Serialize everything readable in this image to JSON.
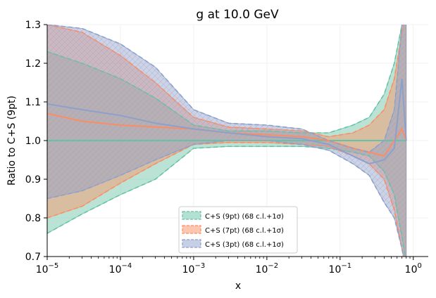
{
  "chart_data": {
    "type": "line",
    "title": "g at 10.0 GeV",
    "xlabel": "x",
    "ylabel": "Ratio to C+S (9pt)",
    "x_scale": "log",
    "xlim": [
      1e-05,
      1.6
    ],
    "ylim": [
      0.7,
      1.3
    ],
    "grid": true,
    "legend_position": "lower-center",
    "x_ticks": [
      {
        "value": 1e-05,
        "base": "10",
        "exp": "−5"
      },
      {
        "value": 0.0001,
        "base": "10",
        "exp": "−4"
      },
      {
        "value": 0.001,
        "base": "10",
        "exp": "−3"
      },
      {
        "value": 0.01,
        "base": "10",
        "exp": "−2"
      },
      {
        "value": 0.1,
        "base": "10",
        "exp": "−1"
      },
      {
        "value": 1,
        "base": "10",
        "exp": "0"
      }
    ],
    "y_ticks": [
      0.7,
      0.8,
      0.9,
      1.0,
      1.1,
      1.2,
      1.3
    ],
    "y_tick_labels": [
      "0.7",
      "0.8",
      "0.9",
      "1.0",
      "1.1",
      "1.2",
      "1.3"
    ],
    "x": [
      1e-05,
      3e-05,
      0.0001,
      0.0003,
      0.001,
      0.003,
      0.01,
      0.03,
      0.07,
      0.15,
      0.25,
      0.4,
      0.55,
      0.7,
      0.8
    ],
    "series": [
      {
        "name": "C+S (9pt) (68 c.l.+1σ)",
        "color": "#66c2a5",
        "central": [
          1.0,
          1.0,
          1.0,
          1.0,
          1.0,
          1.0,
          1.0,
          1.0,
          1.0,
          1.0,
          1.0,
          1.0,
          1.0,
          1.0,
          1.0
        ],
        "upper": [
          1.23,
          1.2,
          1.16,
          1.11,
          1.04,
          1.025,
          1.025,
          1.02,
          1.02,
          1.04,
          1.06,
          1.12,
          1.2,
          1.3,
          1.35
        ],
        "lower": [
          0.76,
          0.81,
          0.86,
          0.9,
          0.98,
          0.985,
          0.985,
          0.985,
          0.98,
          0.97,
          0.96,
          0.92,
          0.86,
          0.75,
          0.68
        ]
      },
      {
        "name": "C+S (7pt) (68 c.l.+1σ)",
        "color": "#fc8d62",
        "central": [
          1.07,
          1.05,
          1.04,
          1.035,
          1.03,
          1.02,
          1.015,
          1.01,
          1.0,
          0.98,
          0.97,
          0.96,
          1.0,
          1.03,
          1.0
        ],
        "upper": [
          1.3,
          1.28,
          1.22,
          1.15,
          1.06,
          1.035,
          1.03,
          1.025,
          1.01,
          1.02,
          1.04,
          1.08,
          1.16,
          1.28,
          1.33
        ],
        "lower": [
          0.8,
          0.83,
          0.89,
          0.94,
          0.99,
          0.995,
          0.995,
          0.99,
          0.985,
          0.96,
          0.94,
          0.9,
          0.82,
          0.72,
          0.66
        ]
      },
      {
        "name": "C+S (3pt) (68 c.l.+1σ)",
        "color": "#8da0cb",
        "central": [
          1.095,
          1.08,
          1.065,
          1.045,
          1.03,
          1.02,
          1.01,
          1.005,
          0.99,
          0.96,
          0.94,
          0.95,
          0.98,
          1.16,
          1.0
        ],
        "upper": [
          1.3,
          1.29,
          1.25,
          1.19,
          1.08,
          1.045,
          1.04,
          1.03,
          1.0,
          0.98,
          0.97,
          1.0,
          1.08,
          1.3,
          1.35
        ],
        "lower": [
          0.85,
          0.87,
          0.91,
          0.95,
          0.99,
          1.0,
          1.0,
          0.99,
          0.975,
          0.94,
          0.91,
          0.84,
          0.8,
          0.72,
          0.66
        ]
      }
    ],
    "legend": [
      {
        "label": "C+S (9pt) (68 c.l.+1σ)",
        "color": "#66c2a5"
      },
      {
        "label": "C+S (7pt) (68 c.l.+1σ)",
        "color": "#fc8d62"
      },
      {
        "label": "C+S (3pt) (68 c.l.+1σ)",
        "color": "#8da0cb"
      }
    ]
  }
}
